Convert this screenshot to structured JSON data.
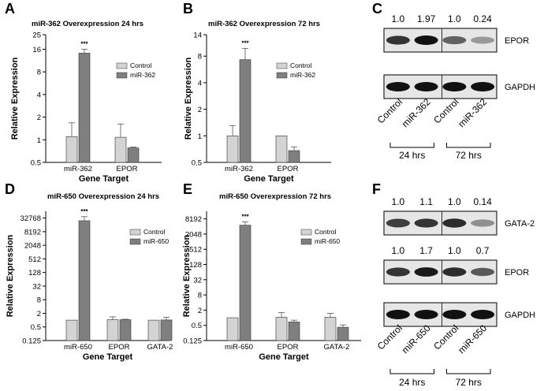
{
  "colors": {
    "control": "#d3d3d3",
    "treated": "#7f7f7f",
    "blot_bg": "#e6e6e6",
    "band": "#111111"
  },
  "chart_data": [
    {
      "panel": "A",
      "type": "bar",
      "title": "miR-362 Overexpression 24 hrs",
      "xlabel": "Gene Target",
      "ylabel": "Relative Expression",
      "yscale": "log2",
      "ylim": [
        0.5,
        25
      ],
      "yticks": [
        "0.5",
        "1",
        "2",
        "4",
        "8",
        "16",
        "25"
      ],
      "categories": [
        "miR-362",
        "EPOR"
      ],
      "series": [
        {
          "name": "Control",
          "values": [
            1.1,
            1.08
          ],
          "errors": [
            1.68,
            1.62
          ]
        },
        {
          "name": "miR-362",
          "values": [
            14.2,
            0.78
          ],
          "errors": [
            16.0,
            0.8
          ]
        }
      ],
      "annotations": [
        "***"
      ],
      "legend_position": "right"
    },
    {
      "panel": "B",
      "type": "bar",
      "title": "miR-362 Overexpression 72 hrs",
      "xlabel": "Gene Target",
      "ylabel": "Relative Expression",
      "yscale": "log2",
      "ylim": [
        0.5,
        14
      ],
      "yticks": [
        "0.5",
        "1",
        "2",
        "4",
        "8",
        "14"
      ],
      "categories": [
        "miR-362",
        "EPOR"
      ],
      "series": [
        {
          "name": "Control",
          "values": [
            1.0,
            1.0
          ],
          "errors": [
            1.3,
            1.0
          ]
        },
        {
          "name": "miR-362",
          "values": [
            7.3,
            0.68
          ],
          "errors": [
            9.8,
            0.75
          ]
        }
      ],
      "annotations": [
        "***"
      ],
      "legend_position": "right"
    },
    {
      "panel": "D",
      "type": "bar",
      "title": "miR-650 Overexpression 24 hrs",
      "xlabel": "Gene Target",
      "ylabel": "Relative Expression",
      "yscale": "log2",
      "ylim": [
        0.125,
        65536
      ],
      "yticks": [
        "0.125",
        "0.5",
        "2",
        "8",
        "32",
        "128",
        "512",
        "2048",
        "8192",
        "32768"
      ],
      "categories": [
        "miR-650",
        "EPOR",
        "GATA-2"
      ],
      "series": [
        {
          "name": "Control",
          "values": [
            1.0,
            1.05,
            1.0
          ],
          "errors": [
            1.0,
            1.4,
            1.0
          ]
        },
        {
          "name": "miR-650",
          "values": [
            25000,
            1.05,
            1.02
          ],
          "errors": [
            38000,
            1.1,
            1.35
          ]
        }
      ],
      "annotations": [
        "***"
      ],
      "legend_position": "right"
    },
    {
      "panel": "E",
      "type": "bar",
      "title": "miR-650 Overexpression 72 hrs",
      "xlabel": "Gene Target",
      "ylabel": "Relative Expression",
      "yscale": "log2",
      "ylim": [
        0.125,
        16384
      ],
      "yticks": [
        "0.125",
        "0.5",
        "2",
        "8",
        "32",
        "128",
        "512",
        "2048",
        "8192"
      ],
      "categories": [
        "miR-650",
        "EPOR",
        "GATA-2"
      ],
      "series": [
        {
          "name": "Control",
          "values": [
            1.0,
            1.05,
            1.05
          ],
          "errors": [
            1.0,
            1.6,
            1.5
          ]
        },
        {
          "name": "miR-650",
          "values": [
            4600,
            0.68,
            0.42
          ],
          "errors": [
            6200,
            0.8,
            0.52
          ]
        }
      ],
      "annotations": [
        "***"
      ],
      "legend_position": "right"
    }
  ],
  "blots": [
    {
      "panel": "C",
      "rows": [
        {
          "label": "EPOR",
          "values": [
            "1.0",
            "1.97",
            "1.0",
            "0.24"
          ],
          "intensity": [
            0.8,
            1.0,
            0.55,
            0.25
          ]
        },
        {
          "label": "GAPDH",
          "values": [],
          "intensity": [
            1.0,
            1.0,
            1.0,
            1.0
          ]
        }
      ],
      "lanes": [
        "Control",
        "miR-362",
        "Control",
        "miR-362"
      ],
      "times": [
        "24 hrs",
        "72 hrs"
      ]
    },
    {
      "panel": "F",
      "rows": [
        {
          "label": "GATA-2",
          "values": [
            "1.0",
            "1.1",
            "1.0",
            "0.14"
          ],
          "intensity": [
            0.75,
            0.8,
            0.85,
            0.3
          ]
        },
        {
          "label": "EPOR",
          "values": [
            "1.0",
            "1.7",
            "1.0",
            "0.7"
          ],
          "intensity": [
            0.8,
            0.95,
            0.85,
            0.6
          ]
        },
        {
          "label": "GAPDH",
          "values": [],
          "intensity": [
            1.0,
            1.0,
            1.0,
            1.0
          ]
        }
      ],
      "lanes": [
        "Control",
        "miR-650",
        "Control",
        "miR-650"
      ],
      "times": [
        "24 hrs",
        "72 hrs"
      ]
    }
  ]
}
